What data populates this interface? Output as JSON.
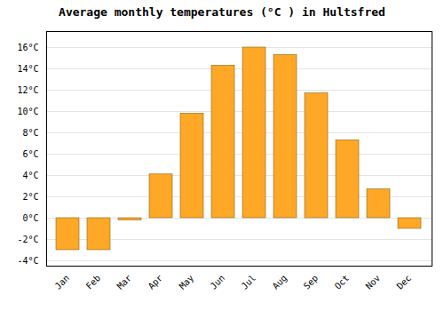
{
  "chart_data": {
    "type": "bar",
    "title": "Average monthly temperatures (°C ) in Hultsfred",
    "categories": [
      "Jan",
      "Feb",
      "Mar",
      "Apr",
      "May",
      "Jun",
      "Jul",
      "Aug",
      "Sep",
      "Oct",
      "Nov",
      "Dec"
    ],
    "values": [
      -3.0,
      -3.0,
      -0.2,
      4.1,
      9.8,
      14.3,
      16.0,
      15.3,
      11.7,
      7.3,
      2.7,
      -1.0
    ],
    "color": "#FFA726",
    "ylim": [
      -4.5,
      17.5
    ],
    "yticks": [
      {
        "value": -4,
        "label": "-4°C"
      },
      {
        "value": -2,
        "label": "-2°C"
      },
      {
        "value": 0,
        "label": "0°C"
      },
      {
        "value": 2,
        "label": "2°C"
      },
      {
        "value": 4,
        "label": "4°C"
      },
      {
        "value": 6,
        "label": "6°C"
      },
      {
        "value": 8,
        "label": "8°C"
      },
      {
        "value": 10,
        "label": "10°C"
      },
      {
        "value": 12,
        "label": "12°C"
      },
      {
        "value": 14,
        "label": "14°C"
      },
      {
        "value": 16,
        "label": "16°C"
      }
    ],
    "grid": true
  }
}
